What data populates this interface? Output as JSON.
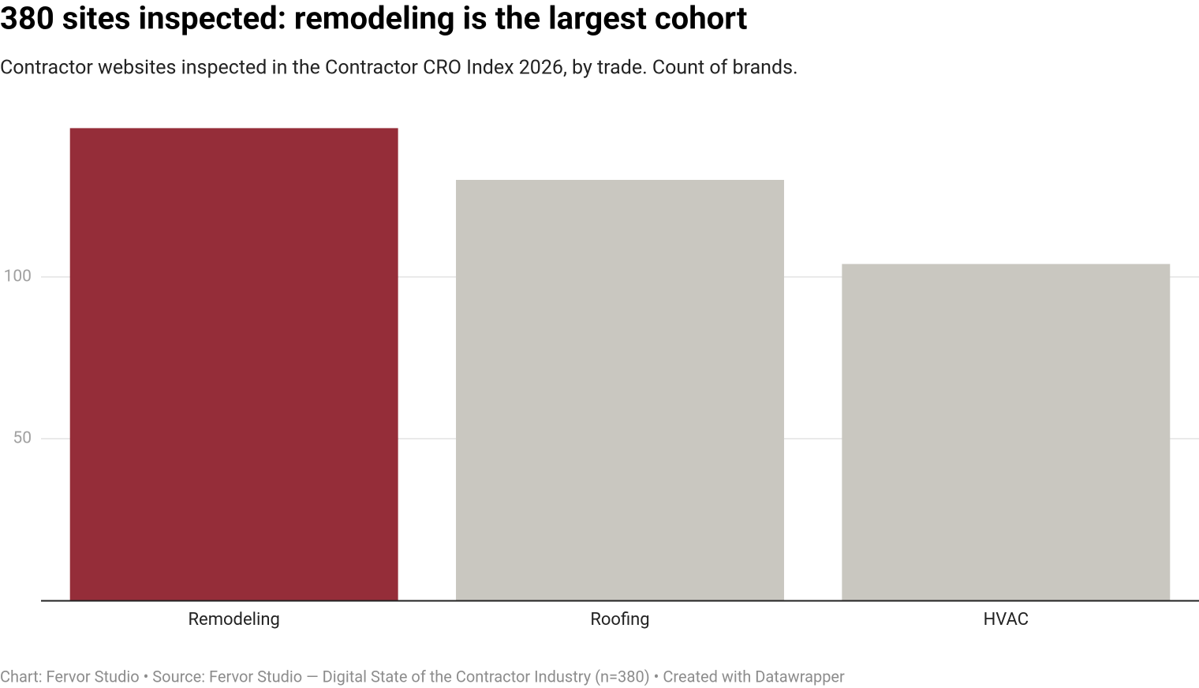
{
  "chart_data": {
    "type": "bar",
    "title": "380 sites inspected: remodeling is the largest cohort",
    "subtitle": "Contractor websites inspected in the Contractor CRO Index 2026, by trade. Count of brands.",
    "categories": [
      "Remodeling",
      "Roofing",
      "HVAC"
    ],
    "values": [
      146,
      130,
      104
    ],
    "colors": [
      "#952d39",
      "#c9c7c0",
      "#c9c7c0"
    ],
    "ylim": [
      0,
      150
    ],
    "yticks": [
      50,
      100
    ],
    "grid": true,
    "footer": "Chart: Fervor Studio • Source: Fervor Studio — Digital State of the Contractor Industry (n=380) • Created with Datawrapper"
  }
}
